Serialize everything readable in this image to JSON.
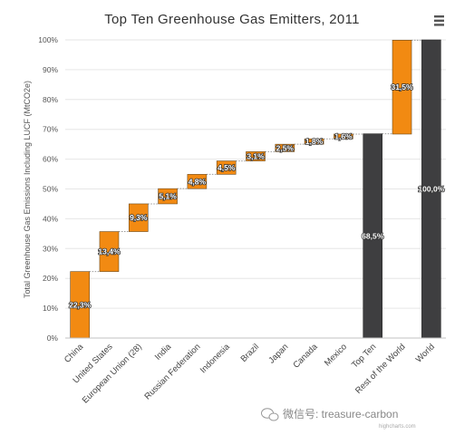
{
  "chart_data": {
    "type": "bar",
    "subtype": "waterfall",
    "title": "Top Ten Greenhouse Gas Emitters, 2011",
    "ylabel": "Total Greenhouse Gas Emissions Including LUCF (MtCO2e)",
    "xlabel": "",
    "ylim": [
      0,
      100
    ],
    "y_ticks": [
      "0%",
      "10%",
      "20%",
      "30%",
      "40%",
      "50%",
      "60%",
      "70%",
      "80%",
      "90%",
      "100%"
    ],
    "grid": true,
    "legend": "none",
    "categories": [
      "China",
      "United States",
      "European Union (28)",
      "India",
      "Russian Federation",
      "Indonesia",
      "Brazil",
      "Japan",
      "Canada",
      "Mexico",
      "Top Ten",
      "Rest of the World",
      "World"
    ],
    "values": [
      22.3,
      13.4,
      9.3,
      5.1,
      4.8,
      4.5,
      3.1,
      2.5,
      1.8,
      1.6,
      68.5,
      31.5,
      100.0
    ],
    "kinds": [
      "step",
      "step",
      "step",
      "step",
      "step",
      "step",
      "step",
      "step",
      "step",
      "step",
      "total",
      "step",
      "total"
    ],
    "labels": [
      "22,3%",
      "13,4%",
      "9,3%",
      "5,1%",
      "4,8%",
      "4,5%",
      "3,1%",
      "2,5%",
      "1,8%",
      "1,6%",
      "68,5%",
      "31,5%",
      "100,0%"
    ],
    "colors": {
      "step": "#f28a12",
      "total": "#3e3e40"
    }
  },
  "menu": {
    "icon": "hamburger-menu-icon"
  },
  "watermark": {
    "text": "微信号: treasure-carbon",
    "icon": "wechat-icon",
    "sub": "highcharts.com"
  }
}
